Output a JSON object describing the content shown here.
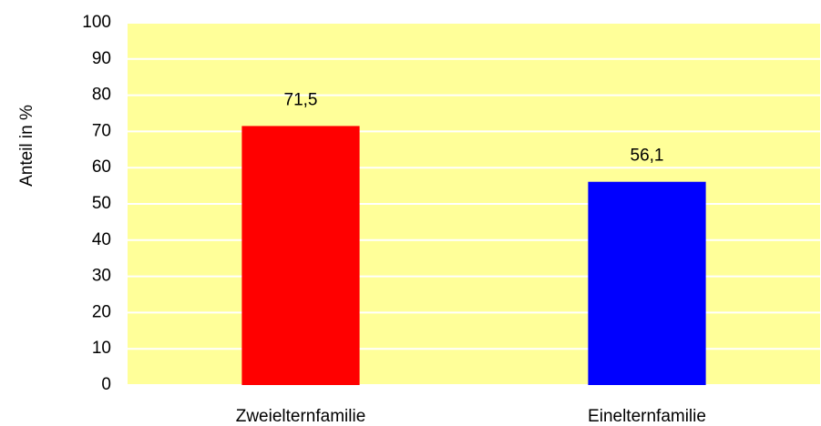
{
  "chart_data": {
    "type": "bar",
    "y_label": "Anteil in %",
    "categories": [
      "Zweielternfamilie",
      "Einelternfamilie"
    ],
    "values": [
      71.5,
      56.1
    ],
    "value_labels": [
      "71,5",
      "56,1"
    ],
    "colors": [
      "#ff0000",
      "#0000ff"
    ],
    "ylim": [
      0,
      100
    ],
    "yticks": [
      0,
      10,
      20,
      30,
      40,
      50,
      60,
      70,
      80,
      90,
      100
    ],
    "grid": true,
    "plot_background": "#ffff99"
  }
}
